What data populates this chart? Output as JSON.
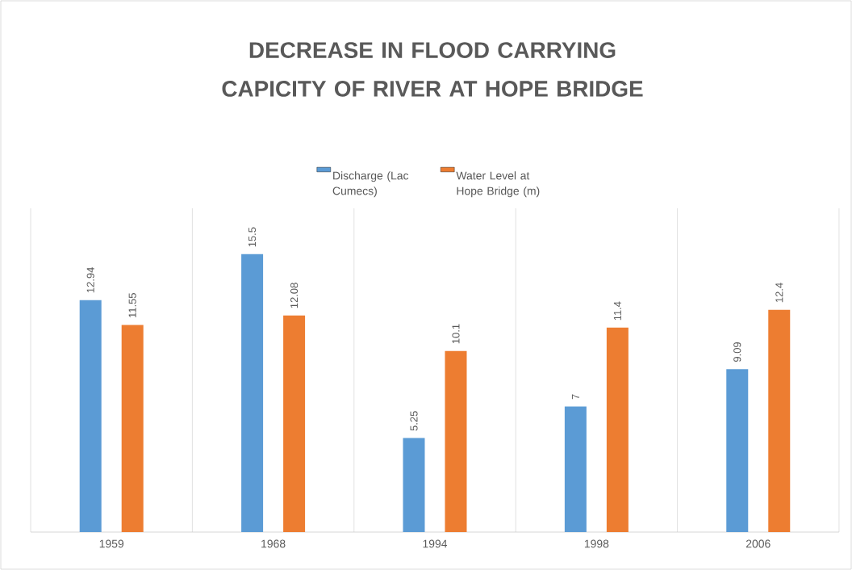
{
  "chart_data": {
    "type": "bar",
    "title": "DECREASE IN FLOOD CARRYING CAPICITY OF RIVER AT HOPE BRIDGE",
    "categories": [
      "1959",
      "1968",
      "1994",
      "1998",
      "2006"
    ],
    "series": [
      {
        "name": "Discharge (Lac Cumecs)",
        "color": "#5b9bd5",
        "values": [
          12.94,
          15.5,
          5.25,
          7,
          9.09
        ]
      },
      {
        "name": "Water Level at Hope Bridge (m)",
        "color": "#ed7d31",
        "values": [
          11.55,
          12.08,
          10.1,
          11.4,
          12.4
        ]
      }
    ],
    "data_labels": true,
    "grid": "x",
    "legend": "top"
  }
}
